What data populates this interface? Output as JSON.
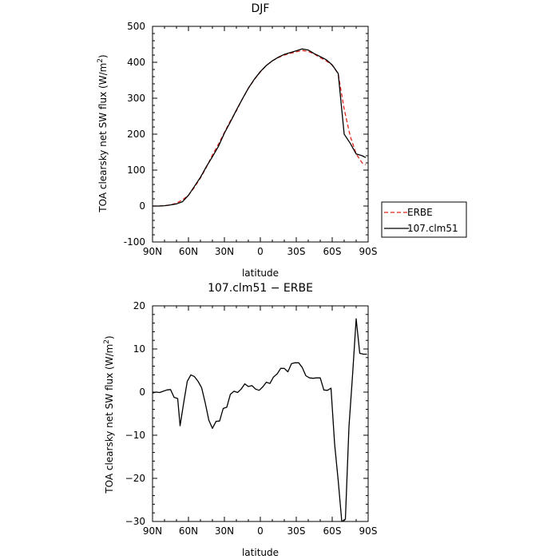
{
  "chart_data": [
    {
      "type": "line",
      "title": "DJF",
      "xlabel": "latitude",
      "ylabel": "TOA clearsky net SW flux (W/m",
      "ylabel_sup": "2",
      "ylabel_end": ")",
      "xlim": [
        90,
        -90
      ],
      "ylim": [
        -100,
        500
      ],
      "x_ticks": [
        90,
        60,
        30,
        0,
        -30,
        -60,
        -90
      ],
      "x_tick_labels": [
        "90N",
        "60N",
        "30N",
        "0",
        "30S",
        "60S",
        "90S"
      ],
      "y_ticks": [
        -100,
        0,
        100,
        200,
        300,
        400,
        500
      ],
      "y_tick_labels": [
        "-100",
        "0",
        "100",
        "200",
        "300",
        "400",
        "500"
      ],
      "legend_position": "right-outside",
      "series": [
        {
          "name": "ERBE",
          "color": "#e0261b",
          "dash": "dashed",
          "x": [
            90,
            85,
            80,
            75,
            70,
            65,
            60,
            55,
            50,
            45,
            40,
            35,
            30,
            25,
            20,
            15,
            10,
            5,
            0,
            -5,
            -10,
            -15,
            -20,
            -25,
            -30,
            -35,
            -40,
            -45,
            -50,
            -55,
            -60,
            -65,
            -70,
            -75,
            -80,
            -85,
            -88
          ],
          "y": [
            0,
            0,
            1,
            3,
            8,
            17,
            30,
            52,
            78,
            108,
            142,
            172,
            205,
            237,
            265,
            298,
            327,
            352,
            373,
            391,
            404,
            413,
            420,
            425,
            429,
            433,
            430,
            423,
            413,
            404,
            392,
            368,
            270,
            195,
            145,
            120,
            115
          ]
        },
        {
          "name": "107.clm51",
          "color": "#000000",
          "dash": "solid",
          "x": [
            90,
            85,
            80,
            75,
            70,
            65,
            60,
            55,
            50,
            45,
            40,
            35,
            30,
            25,
            20,
            15,
            10,
            5,
            0,
            -5,
            -10,
            -15,
            -20,
            -25,
            -30,
            -35,
            -40,
            -45,
            -50,
            -55,
            -60,
            -65,
            -70,
            -75,
            -80,
            -85,
            -88
          ],
          "y": [
            0,
            0,
            1,
            3,
            6,
            12,
            30,
            55,
            80,
            110,
            137,
            166,
            203,
            234,
            267,
            298,
            328,
            353,
            374,
            391,
            404,
            414,
            422,
            427,
            432,
            437,
            434,
            424,
            416,
            407,
            393,
            369,
            200,
            175,
            145,
            140,
            135
          ]
        }
      ]
    },
    {
      "type": "line",
      "title": "107.clm51 − ERBE",
      "xlabel": "latitude",
      "ylabel": "TOA clearsky net SW flux (W/m",
      "ylabel_sup": "2",
      "ylabel_end": ")",
      "xlim": [
        90,
        -90
      ],
      "ylim": [
        -30,
        20
      ],
      "x_ticks": [
        90,
        60,
        30,
        0,
        -30,
        -60,
        -90
      ],
      "x_tick_labels": [
        "90N",
        "60N",
        "30N",
        "0",
        "30S",
        "60S",
        "90S"
      ],
      "y_ticks": [
        -30,
        -20,
        -10,
        0,
        10,
        20
      ],
      "y_tick_labels": [
        "−30",
        "−20",
        "−10",
        "0",
        "10",
        "20"
      ],
      "series": [
        {
          "color": "#000000",
          "x": [
            90,
            87,
            84,
            81,
            78,
            75,
            72,
            69,
            67,
            64,
            61,
            58,
            55,
            52,
            49,
            46,
            43,
            40,
            37,
            34,
            31,
            28,
            25,
            22,
            19,
            16,
            13,
            10,
            7,
            4,
            1,
            -2,
            -5,
            -8,
            -11,
            -14,
            -17,
            -20,
            -23,
            -26,
            -29,
            -32,
            -35,
            -38,
            -41,
            -44,
            -47,
            -50,
            -53,
            -56,
            -59,
            -62,
            -65,
            -68,
            -71,
            -74,
            -77,
            -80,
            -83,
            -86,
            -89
          ],
          "y": [
            -0.2,
            0,
            -0.1,
            0.2,
            0.5,
            0.6,
            -1.2,
            -1.5,
            -7.8,
            -2.5,
            2.5,
            4.0,
            3.6,
            2.5,
            1.0,
            -2.5,
            -6.5,
            -8.4,
            -6.8,
            -6.7,
            -3.8,
            -3.5,
            -0.5,
            0.2,
            -0.1,
            0.7,
            1.9,
            1.3,
            1.5,
            0.7,
            0.4,
            1.2,
            2.3,
            2.0,
            3.5,
            4.2,
            5.5,
            5.5,
            4.7,
            6.6,
            6.8,
            6.8,
            5.7,
            3.8,
            3.3,
            3.2,
            3.3,
            3.3,
            0.5,
            0.4,
            0.9,
            -12.0,
            -20.5,
            -30.0,
            -29.5,
            -8.0,
            4.0,
            17.0,
            9.0,
            8.8,
            8.8
          ]
        }
      ]
    }
  ]
}
